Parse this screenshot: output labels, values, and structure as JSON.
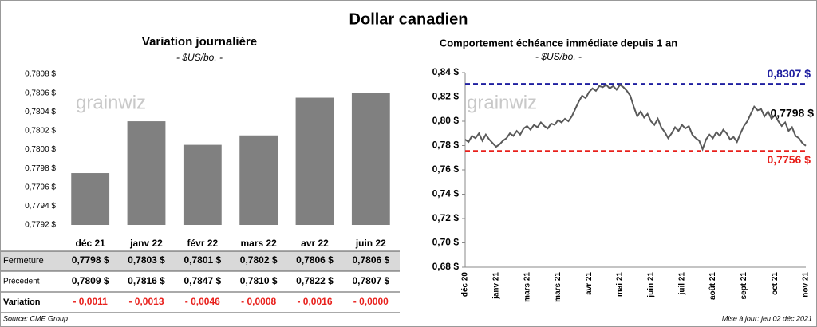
{
  "title": "Dollar canadien",
  "watermark": "grainwiz",
  "chart_data": [
    {
      "type": "bar",
      "title": "Variation journalière",
      "subtitle": "- $US/bo. -",
      "categories": [
        "déc 21",
        "janv 22",
        "févr 22",
        "mars 22",
        "avr 22",
        "juin 22"
      ],
      "values": [
        0.77975,
        0.7803,
        0.78005,
        0.78015,
        0.78055,
        0.7806
      ],
      "color": "#808080",
      "ylim": [
        0.7792,
        0.7808
      ],
      "yticks": [
        {
          "value": 0.7792,
          "label": "0,7792 $"
        },
        {
          "value": 0.7794,
          "label": "0,7794 $"
        },
        {
          "value": 0.7796,
          "label": "0,7796 $"
        },
        {
          "value": 0.7798,
          "label": "0,7798 $"
        },
        {
          "value": 0.78,
          "label": "0,7800 $"
        },
        {
          "value": 0.7802,
          "label": "0,7802 $"
        },
        {
          "value": 0.7804,
          "label": "0,7804 $"
        },
        {
          "value": 0.7806,
          "label": "0,7806 $"
        },
        {
          "value": 0.7808,
          "label": "0,7808 $"
        }
      ]
    },
    {
      "type": "line",
      "title": "Comportement échéance immédiate depuis 1 an",
      "subtitle": "- $US/bo. -",
      "x": [
        "déc 20",
        null,
        null,
        null,
        null,
        null,
        null,
        null,
        null,
        "janv 21",
        null,
        null,
        null,
        null,
        null,
        null,
        null,
        null,
        "mars 21",
        null,
        null,
        null,
        null,
        null,
        null,
        null,
        null,
        "mars 21",
        null,
        null,
        null,
        null,
        null,
        null,
        null,
        null,
        "avr 21",
        null,
        null,
        null,
        null,
        null,
        null,
        null,
        null,
        "mai 21",
        null,
        null,
        null,
        null,
        null,
        null,
        null,
        null,
        "juin 21",
        null,
        null,
        null,
        null,
        null,
        null,
        null,
        null,
        "juil 21",
        null,
        null,
        null,
        null,
        null,
        null,
        null,
        null,
        "août 21",
        null,
        null,
        null,
        null,
        null,
        null,
        null,
        null,
        "sept 21",
        null,
        null,
        null,
        null,
        null,
        null,
        null,
        null,
        "oct 21",
        null,
        null,
        null,
        null,
        null,
        null,
        null,
        null,
        "nov 21"
      ],
      "values": [
        0.785,
        0.783,
        0.788,
        0.786,
        0.79,
        0.784,
        0.789,
        0.785,
        0.782,
        0.779,
        0.781,
        0.784,
        0.786,
        0.79,
        0.788,
        0.792,
        0.789,
        0.794,
        0.796,
        0.793,
        0.797,
        0.795,
        0.799,
        0.796,
        0.794,
        0.798,
        0.797,
        0.801,
        0.799,
        0.802,
        0.8,
        0.804,
        0.81,
        0.816,
        0.821,
        0.819,
        0.824,
        0.827,
        0.825,
        0.829,
        0.828,
        0.83,
        0.827,
        0.829,
        0.826,
        0.83,
        0.828,
        0.825,
        0.821,
        0.812,
        0.804,
        0.808,
        0.803,
        0.806,
        0.8,
        0.797,
        0.802,
        0.795,
        0.791,
        0.786,
        0.79,
        0.795,
        0.792,
        0.797,
        0.794,
        0.796,
        0.789,
        0.786,
        0.784,
        0.777,
        0.785,
        0.789,
        0.786,
        0.791,
        0.788,
        0.793,
        0.79,
        0.785,
        0.787,
        0.783,
        0.79,
        0.796,
        0.8,
        0.806,
        0.812,
        0.809,
        0.81,
        0.804,
        0.808,
        0.802,
        0.805,
        0.8,
        0.796,
        0.799,
        0.792,
        0.795,
        0.788,
        0.786,
        0.782,
        0.7798
      ],
      "color": "#595959",
      "end_label": "0,7798 $",
      "reference_lines": [
        {
          "value": 0.8307,
          "label": "0,8307 $",
          "color": "#1f1fa0"
        },
        {
          "value": 0.7756,
          "label": "0,7756 $",
          "color": "#e8201c"
        }
      ],
      "ylim": [
        0.68,
        0.84
      ],
      "yticks": [
        {
          "value": 0.68,
          "label": "0,68 $"
        },
        {
          "value": 0.7,
          "label": "0,70 $"
        },
        {
          "value": 0.72,
          "label": "0,72 $"
        },
        {
          "value": 0.74,
          "label": "0,74 $"
        },
        {
          "value": 0.76,
          "label": "0,76 $"
        },
        {
          "value": 0.78,
          "label": "0,78 $"
        },
        {
          "value": 0.8,
          "label": "0,80 $"
        },
        {
          "value": 0.82,
          "label": "0,82 $"
        },
        {
          "value": 0.84,
          "label": "0,84 $"
        }
      ]
    }
  ],
  "table": {
    "rows": [
      [
        "Fermeture",
        "0,7798 $",
        "0,7803 $",
        "0,7801 $",
        "0,7802 $",
        "0,7806 $",
        "0,7806 $"
      ],
      [
        "Précédent",
        "0,7809 $",
        "0,7816 $",
        "0,7847 $",
        "0,7810 $",
        "0,7822 $",
        "0,7807 $"
      ],
      [
        "Variation",
        "- 0,0011",
        "- 0,0013",
        "- 0,0046",
        "- 0,0008",
        "- 0,0016",
        "- 0,0000"
      ]
    ]
  },
  "footer": {
    "source": "Source: CME Group",
    "updated": "Mise à jour: jeu 02 déc 2021"
  }
}
